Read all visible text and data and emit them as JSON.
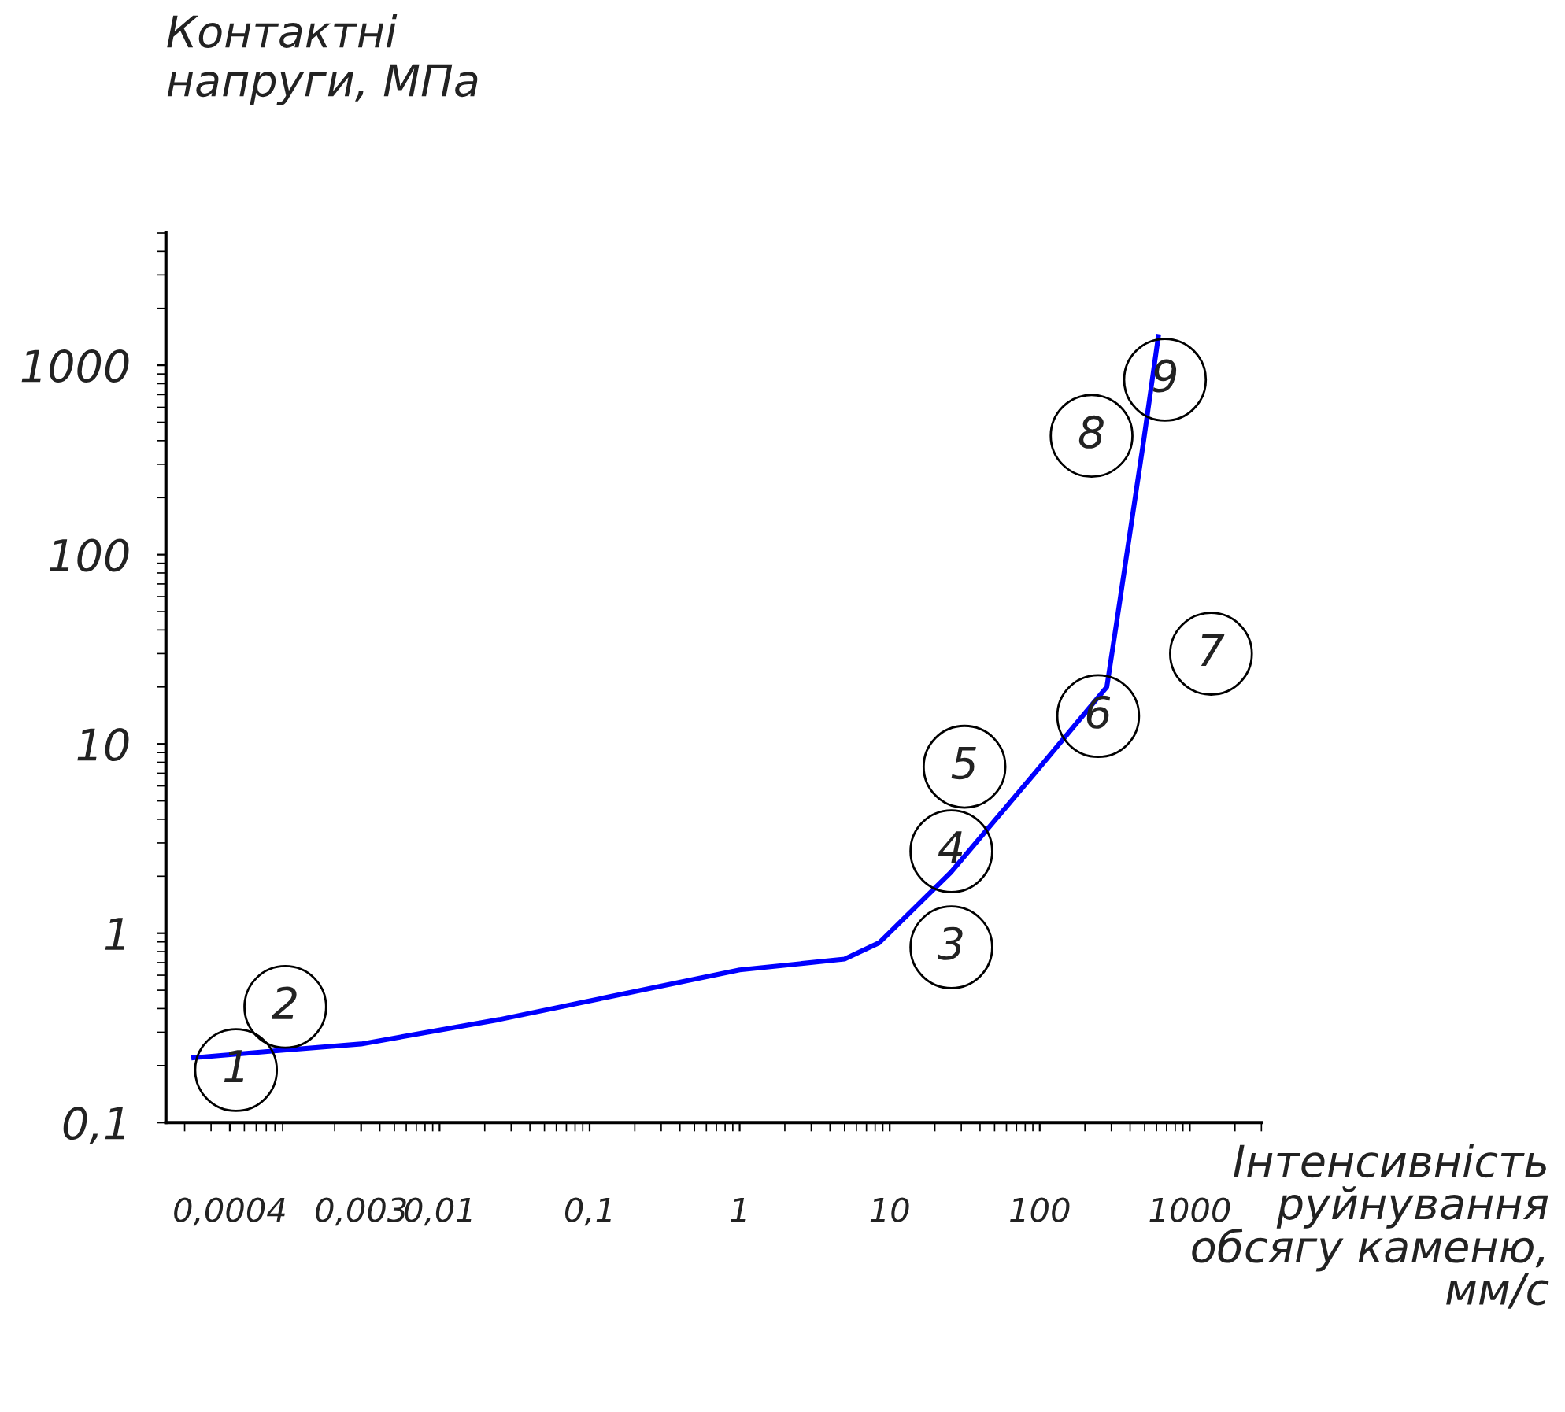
{
  "chart_data": {
    "type": "line",
    "xlabel": "Інтенсивність\nруйнування\nобсягу каменю,\nмм/с",
    "ylabel": "Контактні\nнапруги, МПа",
    "log": "xy",
    "grid": false,
    "legend": false,
    "marker": "none",
    "line_style": "solid",
    "x": [
      0.00023,
      0.00085,
      0.003,
      0.025,
      1,
      5,
      8.5,
      25.6,
      94,
      280,
      327,
      495,
      617
    ],
    "series": [
      {
        "color": "#0000ff",
        "values": [
          0.22,
          0.24,
          0.26,
          0.35,
          0.64,
          0.73,
          0.89,
          2.1,
          7.1,
          20,
          45,
          410,
          1420
        ]
      }
    ],
    "xlim": [
      0.00015,
      3000
    ],
    "ylim": [
      0.1,
      5000
    ],
    "xticks": [
      {
        "value": 0.0004,
        "label": "0,0004"
      },
      {
        "value": 0.003,
        "label": "0,003"
      },
      {
        "value": 0.01,
        "label": "0,01"
      },
      {
        "value": 0.1,
        "label": "0,1"
      },
      1,
      10,
      100,
      1000
    ],
    "yticks": [
      {
        "value": 0.1,
        "label": "0,1"
      },
      1,
      10,
      100,
      1000
    ],
    "annotations": [
      "1",
      "2",
      "3",
      "4",
      "5",
      "6",
      "7",
      "8",
      "9"
    ]
  }
}
